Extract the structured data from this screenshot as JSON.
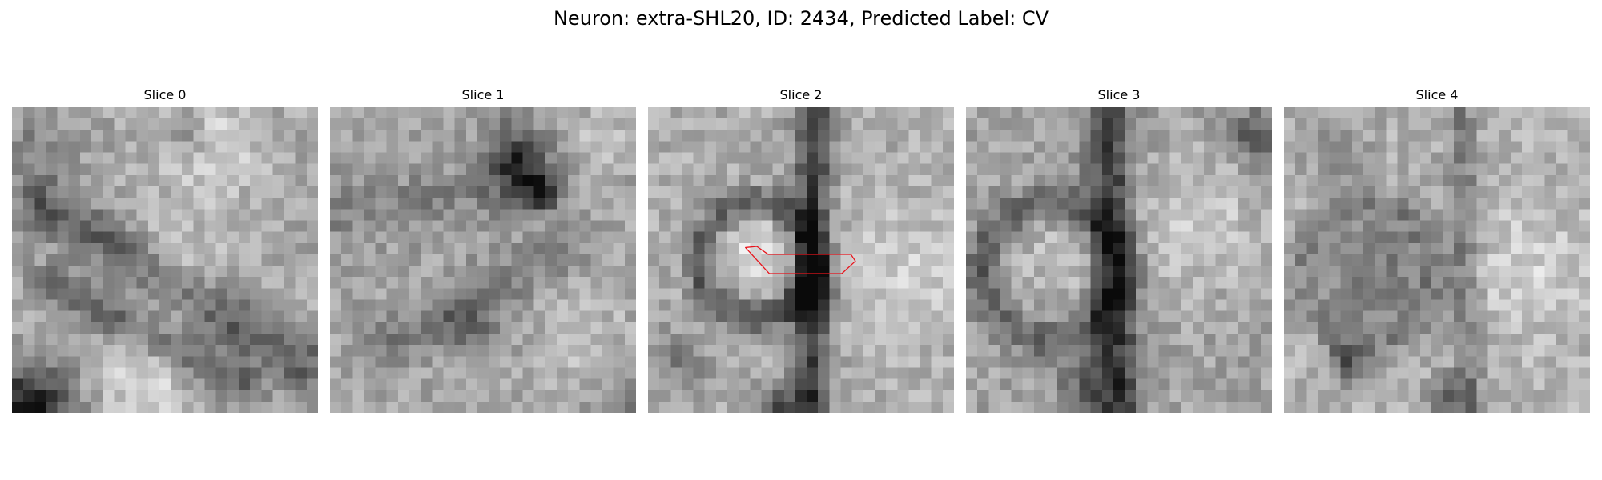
{
  "title": "Neuron: extra-SHL20, ID: 2434, Predicted Label: CV",
  "panels": [
    {
      "title": "Slice 0"
    },
    {
      "title": "Slice 1"
    },
    {
      "title": "Slice 2"
    },
    {
      "title": "Slice 3"
    },
    {
      "title": "Slice 4"
    }
  ],
  "contour_color": "#e8131b"
}
